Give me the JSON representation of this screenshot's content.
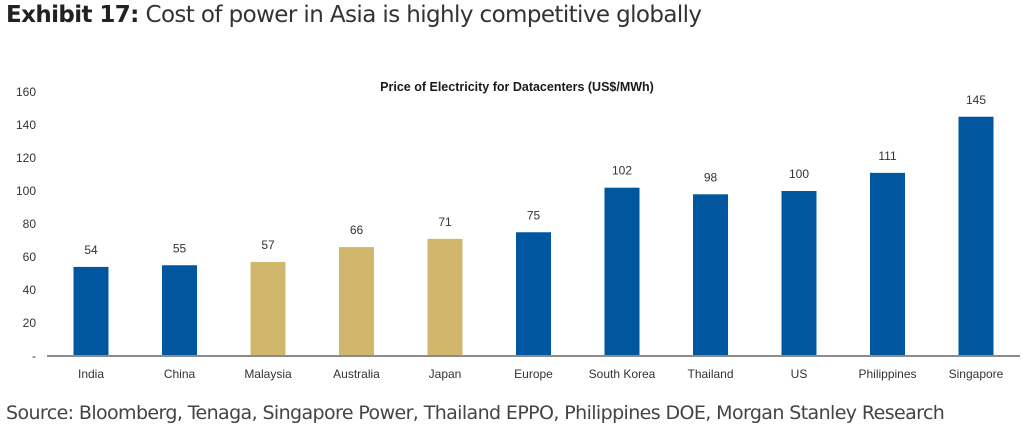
{
  "header": {
    "exhibit_label": "Exhibit 17:",
    "exhibit_title": "Cost of power in Asia is highly competitive globally"
  },
  "source": "Source: Bloomberg, Tenaga, Singapore Power, Thailand EPPO, Philippines DOE, Morgan Stanley Research",
  "chart_data": {
    "type": "bar",
    "title": "Price of Electricity for Datacenters (US$/MWh)",
    "xlabel": "",
    "ylabel": "",
    "ylim": [
      0,
      160
    ],
    "yticks": [
      0,
      20,
      40,
      60,
      80,
      100,
      120,
      140,
      160
    ],
    "ytick_labels": [
      "-",
      "20",
      "40",
      "60",
      "80",
      "100",
      "120",
      "140",
      "160"
    ],
    "grid": false,
    "legend": "none",
    "categories": [
      "India",
      "China",
      "Malaysia",
      "Australia",
      "Japan",
      "Europe",
      "South Korea",
      "Thailand",
      "US",
      "Philippines",
      "Singapore"
    ],
    "values": [
      54,
      55,
      57,
      66,
      71,
      75,
      102,
      98,
      100,
      111,
      145
    ],
    "data_labels": [
      "54",
      "55",
      "57",
      "66",
      "71",
      "75",
      "102",
      "98",
      "100",
      "111",
      "145"
    ],
    "bar_colors": [
      "#0057A0",
      "#0057A0",
      "#D1B76B",
      "#D1B76B",
      "#D1B76B",
      "#0057A0",
      "#0057A0",
      "#0057A0",
      "#0057A0",
      "#0057A0",
      "#0057A0"
    ],
    "axis_color": "#8C8C8C"
  }
}
